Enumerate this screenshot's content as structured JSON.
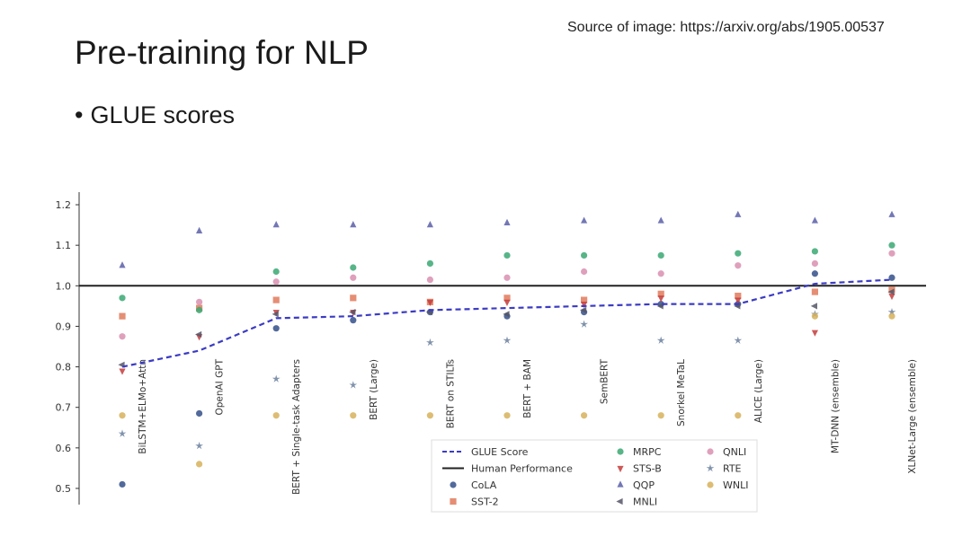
{
  "slide": {
    "source_text": "Source of image: https://arxiv.org/abs/1905.00537",
    "title": "Pre-training for NLP",
    "bullet": "GLUE scores",
    "bullet_symbol": "•"
  },
  "chart_data": {
    "type": "scatter",
    "title": "",
    "xlabel": "",
    "ylabel": "",
    "ylim": [
      0.48,
      1.22
    ],
    "yticks": [
      0.5,
      0.6,
      0.7,
      0.8,
      0.9,
      1.0,
      1.1,
      1.2
    ],
    "ytick_labels": [
      "0.5",
      "0.6",
      "0.7",
      "0.8",
      "0.9",
      "1.0",
      "1.1",
      "1.2"
    ],
    "grid": false,
    "legend_position": "bottom-center",
    "categories": [
      "BiLSTM+ELMo+Attn",
      "OpenAI GPT",
      "BERT + Single-task Adapters",
      "BERT (Large)",
      "BERT on STILTs",
      "BERT + BAM",
      "SemBERT",
      "Snorkel MeTaL",
      "ALICE (Large)",
      "MT-DNN (ensemble)",
      "XLNet-Large (ensemble)"
    ],
    "human_performance": 1.0,
    "series": [
      {
        "name": "GLUE Score",
        "marker": "dashed-line",
        "color": "#3b3bc4",
        "values": [
          0.8,
          0.84,
          0.92,
          0.925,
          0.94,
          0.945,
          0.95,
          0.955,
          0.955,
          1.005,
          1.015
        ]
      },
      {
        "name": "Human Performance",
        "marker": "solid-line",
        "color": "#222222",
        "values": []
      },
      {
        "name": "CoLA",
        "marker": "circle",
        "color": "#34508a",
        "values": [
          0.51,
          0.685,
          0.895,
          0.915,
          0.935,
          0.925,
          0.935,
          0.955,
          0.955,
          1.03,
          1.02
        ]
      },
      {
        "name": "SST-2",
        "marker": "square",
        "color": "#e07a5c",
        "values": [
          0.925,
          0.945,
          0.965,
          0.97,
          0.96,
          0.97,
          0.965,
          0.98,
          0.975,
          0.985,
          0.99
        ]
      },
      {
        "name": "MRPC",
        "marker": "circle",
        "color": "#3aa873",
        "values": [
          0.97,
          0.94,
          1.035,
          1.045,
          1.055,
          1.075,
          1.075,
          1.075,
          1.08,
          1.085,
          1.1
        ]
      },
      {
        "name": "STS-B",
        "marker": "triangle-down",
        "color": "#c43c3c",
        "values": [
          0.79,
          0.875,
          0.935,
          0.935,
          0.96,
          0.96,
          0.955,
          0.97,
          0.965,
          0.885,
          0.975
        ]
      },
      {
        "name": "QQP",
        "marker": "triangle-up",
        "color": "#5b5fa8",
        "values": [
          1.05,
          1.135,
          1.15,
          1.15,
          1.15,
          1.155,
          1.16,
          1.16,
          1.175,
          1.16,
          1.175
        ]
      },
      {
        "name": "MNLI",
        "marker": "triangle-left",
        "color": "#555566",
        "values": [
          0.805,
          0.88,
          0.93,
          0.935,
          0.935,
          0.93,
          0.94,
          0.95,
          0.95,
          0.95,
          0.985
        ]
      },
      {
        "name": "QNLI",
        "marker": "circle",
        "color": "#d98fb0",
        "values": [
          0.875,
          0.96,
          1.01,
          1.02,
          1.015,
          1.02,
          1.035,
          1.03,
          1.05,
          1.055,
          1.08
        ]
      },
      {
        "name": "RTE",
        "marker": "star",
        "color": "#6a7f9e",
        "values": [
          0.635,
          0.605,
          0.77,
          0.755,
          0.86,
          0.865,
          0.905,
          0.865,
          0.865,
          0.93,
          0.935
        ]
      },
      {
        "name": "WNLI",
        "marker": "circle",
        "color": "#d6b15a",
        "values": [
          0.68,
          0.56,
          0.68,
          0.68,
          0.68,
          0.68,
          0.68,
          0.68,
          0.68,
          0.925,
          0.925
        ]
      }
    ]
  }
}
